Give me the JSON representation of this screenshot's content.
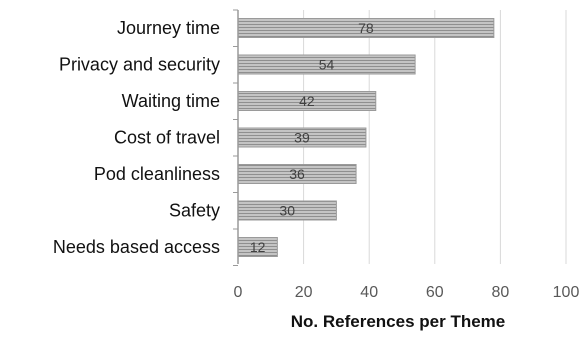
{
  "chart_data": {
    "type": "bar",
    "orientation": "horizontal",
    "categories": [
      "Journey time",
      "Privacy and security",
      "Waiting time",
      "Cost of travel",
      "Pod cleanliness",
      "Safety",
      "Needs based access"
    ],
    "values": [
      78,
      54,
      42,
      39,
      36,
      30,
      12
    ],
    "data_labels": [
      "78",
      "54",
      "42",
      "39",
      "36",
      "30",
      "12"
    ],
    "xlabel": "No. References per Theme",
    "ylabel": "",
    "xlim": [
      0,
      100
    ],
    "x_ticks": [
      0,
      20,
      40,
      60,
      80,
      100
    ],
    "x_tick_labels": [
      "0",
      "20",
      "40",
      "60",
      "80",
      "100"
    ],
    "grid": "vertical",
    "legend": "none",
    "colors": {
      "bar_fill": "#c4c4c4",
      "bar_stripe": "#8f8f8f",
      "bar_border": "#9a9a9a",
      "grid": "#d9d9d9",
      "axis": "#9a9a9a",
      "label_text": "#111111",
      "tick_text": "#595959",
      "data_label_text": "#404040"
    }
  }
}
